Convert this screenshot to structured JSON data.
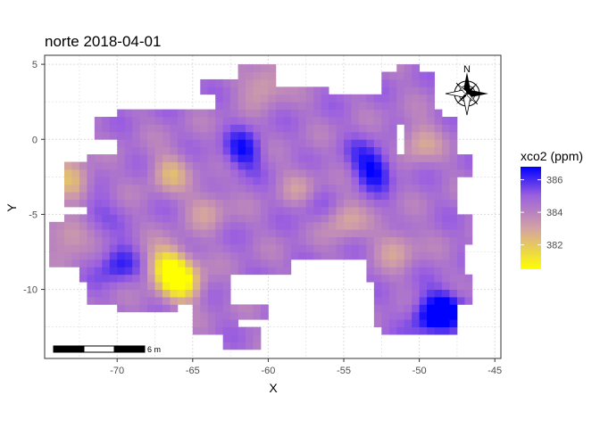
{
  "chart_data": {
    "type": "heatmap",
    "title": "norte 2018-04-01",
    "xlabel": "X",
    "ylabel": "Y",
    "xlim": [
      -74.8,
      -44.6
    ],
    "ylim": [
      -14.6,
      5.6
    ],
    "x_ticks": [
      -70,
      -65,
      -60,
      -55,
      -50,
      -45
    ],
    "y_ticks": [
      5,
      0,
      -5,
      -10
    ],
    "x_tick_labels": [
      "-70",
      "-65",
      "-60",
      "-55",
      "-50",
      "-45"
    ],
    "y_tick_labels": [
      "5",
      "0",
      "-5",
      "-10"
    ],
    "grid": true,
    "cell_size": 0.5,
    "legend": {
      "title": "xco2 (ppm)",
      "placement": "right",
      "min": 380.5,
      "max": 386.8,
      "ticks": [
        382,
        384,
        386
      ],
      "tick_labels": [
        "382",
        "384",
        "386"
      ],
      "colors": [
        "#FFFF00",
        "#D3A2A3",
        "#9B5FE0",
        "#0000FF"
      ]
    },
    "hotspots": [
      {
        "x": -61.7,
        "y": -0.8,
        "v": 386.5
      },
      {
        "x": -53.0,
        "y": -2.0,
        "v": 386.7
      },
      {
        "x": -48.2,
        "y": -11.3,
        "v": 386.8
      },
      {
        "x": -49.5,
        "y": -11.8,
        "v": 386.2
      },
      {
        "x": -70.0,
        "y": -8.2,
        "v": 386.3
      },
      {
        "x": -71.8,
        "y": -4.8,
        "v": 385.6
      },
      {
        "x": -57.0,
        "y": -4.2,
        "v": 385.4
      },
      {
        "x": -54.0,
        "y": -0.7,
        "v": 385.0
      },
      {
        "x": -65.8,
        "y": -9.5,
        "v": 380.6
      },
      {
        "x": -66.7,
        "y": -8.3,
        "v": 381.4
      },
      {
        "x": -73.0,
        "y": -6.4,
        "v": 382.7
      },
      {
        "x": -73.0,
        "y": -2.8,
        "v": 382.3
      },
      {
        "x": -66.5,
        "y": -2.2,
        "v": 382.7
      },
      {
        "x": -50.0,
        "y": -0.2,
        "v": 382.9
      },
      {
        "x": -60.3,
        "y": 3.8,
        "v": 382.8
      },
      {
        "x": -55.0,
        "y": -5.3,
        "v": 382.9
      },
      {
        "x": -51.5,
        "y": -7.2,
        "v": 383.0
      },
      {
        "x": -64.0,
        "y": -4.6,
        "v": 383.1
      },
      {
        "x": -57.8,
        "y": -3.2,
        "v": 383.2
      }
    ],
    "annotations": {
      "north_arrow": "N",
      "scale_bar": "6 m"
    }
  }
}
